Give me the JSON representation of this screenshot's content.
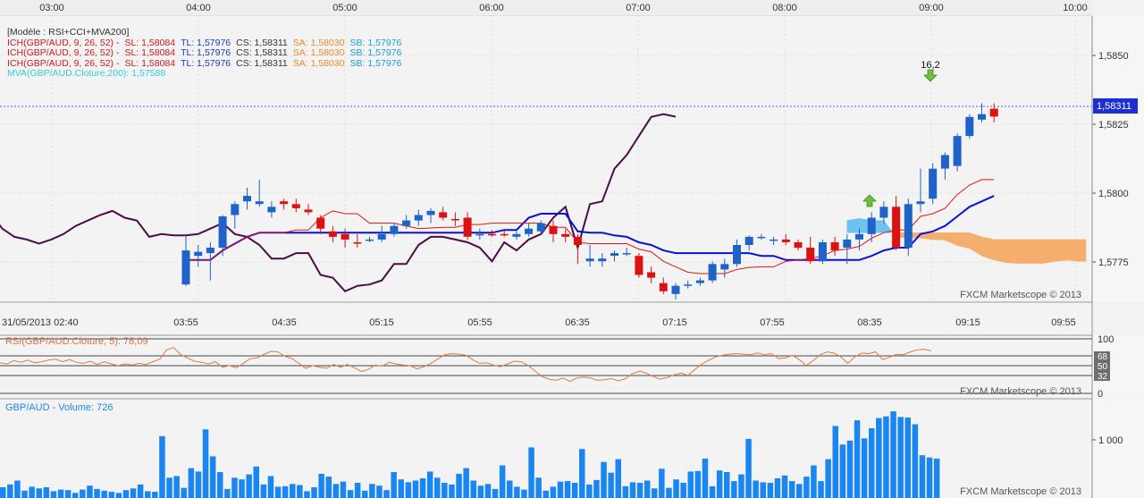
{
  "top_axis": {
    "labels": [
      "03:00",
      "04:00",
      "05:00",
      "06:00",
      "07:00",
      "08:00",
      "09:00",
      "10:00"
    ]
  },
  "legend": {
    "model": "[Modèle : RSI+CCI+MVA200]",
    "ich_rows": [
      {
        "name": "ICH(GBP/AUD, 9, 26, 52) -",
        "sl": "SL: 1,58084",
        "tl": "TL: 1,57976",
        "cs": "CS: 1,58311",
        "sa": "SA: 1,58030",
        "sb": "SB: 1,57976"
      },
      {
        "name": "ICH(GBP/AUD, 9, 26, 52) -",
        "sl": "SL: 1,58084",
        "tl": "TL: 1,57976",
        "cs": "CS: 1,58311",
        "sa": "SA: 1,58030",
        "sb": "SB: 1,57976"
      },
      {
        "name": "ICH(GBP/AUD, 9, 26, 52) -",
        "sl": "SL: 1,58084",
        "tl": "TL: 1,57976",
        "cs": "CS: 1,58311",
        "sa": "SA: 1,58030",
        "sb": "SB: 1,57976"
      }
    ],
    "mva": "MVA(GBP/AUD.Cloture,200): 1,57588"
  },
  "main_chart": {
    "price_axis": [
      "1,5850",
      "1,5825",
      "1,5800",
      "1,5775"
    ],
    "current_price": "1,58311",
    "signal_label": "16,2",
    "watermark": "FXCM Marketscope © 2013"
  },
  "bottom_axis": {
    "labels": [
      "31/05/2013 02:40",
      "03:55",
      "04:35",
      "05:15",
      "05:55",
      "06:35",
      "07:15",
      "07:55",
      "08:35",
      "09:15",
      "09:55"
    ]
  },
  "rsi_panel": {
    "title": "RSI(GBP/AUD.Cloture, 5): 78,09",
    "levels": [
      "100",
      "68",
      "50",
      "32",
      "0"
    ],
    "watermark": "FXCM Marketscope © 2013"
  },
  "volume_panel": {
    "title": "GBP/AUD - Volume: 726",
    "axis_label": "1 000",
    "watermark": "FXCM Marketscope © 2013"
  },
  "colors": {
    "bull": "#1f63c8",
    "bear": "#dd1111",
    "tenkan": "#e01515",
    "kijun": "#0a12d8",
    "chikou": "#4a0d46",
    "cloud_bull": "#6ec2ee",
    "cloud_bear": "#f6ae6e",
    "rsi_line": "#e07a40",
    "volume": "#1a86f2",
    "legend_red": "#cc1a1a",
    "legend_blue": "#1c3cb8",
    "legend_dark": "#333333",
    "legend_orange": "#e88a2a",
    "legend_cyan": "#1aa2c8",
    "mva": "#33ccdd"
  },
  "chart_data": {
    "type": "candlestick",
    "symbol": "GBP/AUD",
    "date": "31/05/2013",
    "interval_minutes": 5,
    "price_ylim": [
      1.5763,
      1.5868
    ],
    "candles": [
      {
        "time": "03:55",
        "open": 1.57695,
        "high": 1.5788,
        "low": 1.5769,
        "close": 1.5782
      },
      {
        "time": "04:00",
        "open": 1.578,
        "high": 1.5784,
        "low": 1.5776,
        "close": 1.57815
      },
      {
        "time": "04:05",
        "open": 1.5781,
        "high": 1.5785,
        "low": 1.5771,
        "close": 1.5783
      },
      {
        "time": "04:10",
        "open": 1.5783,
        "high": 1.5795,
        "low": 1.578,
        "close": 1.57945
      },
      {
        "time": "04:15",
        "open": 1.5795,
        "high": 1.58,
        "low": 1.579,
        "close": 1.5799
      },
      {
        "time": "04:20",
        "open": 1.58,
        "high": 1.5805,
        "low": 1.5797,
        "close": 1.5802
      },
      {
        "time": "04:25",
        "open": 1.5799,
        "high": 1.5808,
        "low": 1.5798,
        "close": 1.58
      },
      {
        "time": "04:30",
        "open": 1.5796,
        "high": 1.58,
        "low": 1.5794,
        "close": 1.5798
      },
      {
        "time": "04:35",
        "open": 1.58,
        "high": 1.5801,
        "low": 1.5797,
        "close": 1.5799
      },
      {
        "time": "04:40",
        "open": 1.5799,
        "high": 1.5801,
        "low": 1.5796,
        "close": 1.57975
      },
      {
        "time": "04:45",
        "open": 1.5797,
        "high": 1.5799,
        "low": 1.5795,
        "close": 1.5796
      },
      {
        "time": "04:50",
        "open": 1.5794,
        "high": 1.5795,
        "low": 1.5788,
        "close": 1.579
      },
      {
        "time": "04:55",
        "open": 1.5789,
        "high": 1.5791,
        "low": 1.5785,
        "close": 1.5787
      },
      {
        "time": "05:00",
        "open": 1.5788,
        "high": 1.579,
        "low": 1.5783,
        "close": 1.5786
      },
      {
        "time": "05:05",
        "open": 1.5785,
        "high": 1.5788,
        "low": 1.5783,
        "close": 1.57845
      },
      {
        "time": "05:10",
        "open": 1.57855,
        "high": 1.5787,
        "low": 1.5785,
        "close": 1.5786
      },
      {
        "time": "05:15",
        "open": 1.5786,
        "high": 1.5791,
        "low": 1.5785,
        "close": 1.5788
      },
      {
        "time": "05:20",
        "open": 1.5788,
        "high": 1.5792,
        "low": 1.5787,
        "close": 1.5791
      },
      {
        "time": "05:25",
        "open": 1.5791,
        "high": 1.5795,
        "low": 1.579,
        "close": 1.5793
      },
      {
        "time": "05:30",
        "open": 1.5793,
        "high": 1.5797,
        "low": 1.5791,
        "close": 1.5795
      },
      {
        "time": "05:35",
        "open": 1.5795,
        "high": 1.57975,
        "low": 1.5792,
        "close": 1.57965
      },
      {
        "time": "05:40",
        "open": 1.5796,
        "high": 1.5798,
        "low": 1.5793,
        "close": 1.5794
      },
      {
        "time": "05:45",
        "open": 1.57935,
        "high": 1.5796,
        "low": 1.5791,
        "close": 1.5793
      },
      {
        "time": "05:50",
        "open": 1.5794,
        "high": 1.5796,
        "low": 1.5786,
        "close": 1.5787
      },
      {
        "time": "05:55",
        "open": 1.5788,
        "high": 1.579,
        "low": 1.5786,
        "close": 1.5788
      },
      {
        "time": "06:00",
        "open": 1.5788,
        "high": 1.57895,
        "low": 1.5787,
        "close": 1.57875
      },
      {
        "time": "06:05",
        "open": 1.5788,
        "high": 1.57895,
        "low": 1.5787,
        "close": 1.57875
      },
      {
        "time": "06:10",
        "open": 1.5787,
        "high": 1.5789,
        "low": 1.5786,
        "close": 1.5788
      },
      {
        "time": "06:15",
        "open": 1.5788,
        "high": 1.5792,
        "low": 1.5787,
        "close": 1.579
      },
      {
        "time": "06:20",
        "open": 1.5789,
        "high": 1.5793,
        "low": 1.5788,
        "close": 1.5792
      },
      {
        "time": "06:25",
        "open": 1.5791,
        "high": 1.5793,
        "low": 1.5785,
        "close": 1.5788
      },
      {
        "time": "06:30",
        "open": 1.5788,
        "high": 1.579,
        "low": 1.5785,
        "close": 1.5787
      },
      {
        "time": "06:35",
        "open": 1.5787,
        "high": 1.5788,
        "low": 1.5777,
        "close": 1.5784
      },
      {
        "time": "06:40",
        "open": 1.5778,
        "high": 1.5784,
        "low": 1.5776,
        "close": 1.5779
      },
      {
        "time": "06:45",
        "open": 1.5778,
        "high": 1.5781,
        "low": 1.5776,
        "close": 1.5779
      },
      {
        "time": "06:50",
        "open": 1.578,
        "high": 1.5782,
        "low": 1.5778,
        "close": 1.5781
      },
      {
        "time": "06:55",
        "open": 1.5781,
        "high": 1.5783,
        "low": 1.578,
        "close": 1.5781
      },
      {
        "time": "07:00",
        "open": 1.578,
        "high": 1.5781,
        "low": 1.5772,
        "close": 1.5773
      },
      {
        "time": "07:05",
        "open": 1.5774,
        "high": 1.5776,
        "low": 1.577,
        "close": 1.5772
      },
      {
        "time": "07:10",
        "open": 1.577,
        "high": 1.5772,
        "low": 1.5766,
        "close": 1.5767
      },
      {
        "time": "07:15",
        "open": 1.5766,
        "high": 1.577,
        "low": 1.5764,
        "close": 1.5769
      },
      {
        "time": "07:20",
        "open": 1.5769,
        "high": 1.5771,
        "low": 1.5768,
        "close": 1.57695
      },
      {
        "time": "07:25",
        "open": 1.577,
        "high": 1.5772,
        "low": 1.5769,
        "close": 1.5771
      },
      {
        "time": "07:30",
        "open": 1.5771,
        "high": 1.5778,
        "low": 1.577,
        "close": 1.5777
      },
      {
        "time": "07:35",
        "open": 1.5775,
        "high": 1.5779,
        "low": 1.5772,
        "close": 1.5777
      },
      {
        "time": "07:40",
        "open": 1.5777,
        "high": 1.5786,
        "low": 1.5776,
        "close": 1.5784
      },
      {
        "time": "07:45",
        "open": 1.5784,
        "high": 1.57875,
        "low": 1.5782,
        "close": 1.5787
      },
      {
        "time": "07:50",
        "open": 1.5787,
        "high": 1.5788,
        "low": 1.5786,
        "close": 1.5787
      },
      {
        "time": "07:55",
        "open": 1.5786,
        "high": 1.5787,
        "low": 1.5784,
        "close": 1.5786
      },
      {
        "time": "08:00",
        "open": 1.5786,
        "high": 1.5788,
        "low": 1.5784,
        "close": 1.5785
      },
      {
        "time": "08:05",
        "open": 1.5785,
        "high": 1.5786,
        "low": 1.5782,
        "close": 1.5783
      },
      {
        "time": "08:10",
        "open": 1.5783,
        "high": 1.5787,
        "low": 1.5777,
        "close": 1.5778
      },
      {
        "time": "08:15",
        "open": 1.5778,
        "high": 1.5786,
        "low": 1.5777,
        "close": 1.5785
      },
      {
        "time": "08:20",
        "open": 1.5785,
        "high": 1.5787,
        "low": 1.578,
        "close": 1.5782
      },
      {
        "time": "08:25",
        "open": 1.5783,
        "high": 1.5788,
        "low": 1.5777,
        "close": 1.5786
      },
      {
        "time": "08:30",
        "open": 1.5786,
        "high": 1.579,
        "low": 1.5782,
        "close": 1.5788
      },
      {
        "time": "08:35",
        "open": 1.5788,
        "high": 1.5796,
        "low": 1.5785,
        "close": 1.5794
      },
      {
        "time": "08:40",
        "open": 1.5794,
        "high": 1.58,
        "low": 1.5792,
        "close": 1.5798
      },
      {
        "time": "08:45",
        "open": 1.5798,
        "high": 1.5802,
        "low": 1.5782,
        "close": 1.5783
      },
      {
        "time": "08:50",
        "open": 1.5783,
        "high": 1.5801,
        "low": 1.578,
        "close": 1.5799
      },
      {
        "time": "08:55",
        "open": 1.5799,
        "high": 1.5812,
        "low": 1.5796,
        "close": 1.58
      },
      {
        "time": "09:00",
        "open": 1.5801,
        "high": 1.5814,
        "low": 1.5799,
        "close": 1.5812
      },
      {
        "time": "09:05",
        "open": 1.5812,
        "high": 1.5818,
        "low": 1.5808,
        "close": 1.5817
      },
      {
        "time": "09:10",
        "open": 1.5813,
        "high": 1.5825,
        "low": 1.5811,
        "close": 1.5824
      },
      {
        "time": "09:15",
        "open": 1.5824,
        "high": 1.5832,
        "low": 1.5823,
        "close": 1.5831
      },
      {
        "time": "09:20",
        "open": 1.583,
        "high": 1.5836,
        "low": 1.5829,
        "close": 1.5832
      },
      {
        "time": "09:25",
        "open": 1.5834,
        "high": 1.5836,
        "low": 1.5829,
        "close": 1.58311
      }
    ],
    "volume_ylim": [
      0,
      1700
    ],
    "volumes": [
      190,
      240,
      310,
      130,
      200,
      170,
      190,
      120,
      150,
      140,
      90,
      150,
      220,
      160,
      130,
      110,
      90,
      140,
      170,
      240,
      120,
      110,
      1100,
      360,
      390,
      180,
      530,
      470,
      1220,
      740,
      460,
      160,
      360,
      330,
      420,
      560,
      240,
      390,
      200,
      210,
      250,
      230,
      120,
      190,
      430,
      380,
      250,
      290,
      140,
      270,
      130,
      250,
      220,
      140,
      460,
      330,
      280,
      310,
      350,
      470,
      360,
      270,
      240,
      430,
      530,
      310,
      220,
      250,
      160,
      580,
      310,
      200,
      150,
      900,
      360,
      130,
      200,
      290,
      300,
      270,
      870,
      240,
      320,
      640,
      450,
      690,
      210,
      280,
      270,
      310,
      170,
      520,
      180,
      330,
      270,
      470,
      480,
      700,
      210,
      490,
      460,
      300,
      420,
      1050,
      310,
      280,
      270,
      350,
      400,
      300,
      250,
      380,
      580,
      300,
      690,
      1280,
      950,
      1020,
      1380,
      1060,
      1240,
      1420,
      1450,
      1540,
      1440,
      1430,
      1310,
      760,
      720,
      700
    ],
    "rsi_ylim": [
      0,
      100
    ],
    "rsi_levels": [
      100,
      68,
      50,
      32,
      0
    ],
    "rsi": [
      56,
      54,
      60,
      57,
      61,
      56,
      58,
      61,
      63,
      58,
      62,
      57,
      55,
      59,
      53,
      58,
      54,
      51,
      54,
      52,
      55,
      53,
      58,
      63,
      80,
      84,
      71,
      65,
      59,
      57,
      54,
      58,
      48,
      51,
      47,
      55,
      64,
      65,
      72,
      77,
      76,
      68,
      64,
      55,
      46,
      51,
      48,
      46,
      53,
      48,
      53,
      47,
      40,
      44,
      52,
      50,
      57,
      54,
      52,
      51,
      45,
      49,
      55,
      63,
      71,
      73,
      72,
      70,
      62,
      55,
      56,
      52,
      49,
      54,
      59,
      58,
      51,
      41,
      31,
      26,
      24,
      28,
      22,
      28,
      30,
      28,
      24,
      25,
      27,
      23,
      27,
      36,
      41,
      37,
      31,
      26,
      29,
      34,
      37,
      33,
      44,
      54,
      61,
      67,
      70,
      72,
      73,
      72,
      71,
      74,
      71,
      73,
      64,
      65,
      70,
      62,
      51,
      60,
      71,
      76,
      74,
      67,
      55,
      67,
      74,
      73,
      76,
      62,
      66,
      72,
      71,
      76,
      80,
      81,
      78
    ],
    "current_price": 1.58311,
    "signal_value": 16.2
  }
}
